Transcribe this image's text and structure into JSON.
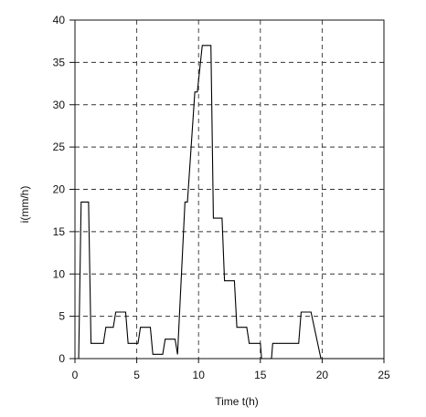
{
  "chart_data": {
    "type": "line",
    "title": "",
    "xlabel": "Time t(h)",
    "ylabel": "i(mm/h)",
    "xlim": [
      0,
      25
    ],
    "ylim": [
      0,
      40
    ],
    "xticks": [
      "0",
      "5",
      "10",
      "15",
      "20",
      "25"
    ],
    "yticks": [
      "0",
      "5",
      "10",
      "15",
      "20",
      "25",
      "30",
      "35",
      "40"
    ],
    "grid": true,
    "grid_style": "dashed",
    "step": true,
    "series": [
      {
        "color": "#000000",
        "x": [
          0.3,
          0.5,
          1.1,
          1.3,
          2.3,
          2.5,
          3.1,
          3.3,
          4.1,
          4.3,
          5.1,
          5.3,
          6.1,
          6.3,
          7.1,
          7.3,
          8.1,
          8.3,
          8.9,
          9.0,
          9.1,
          9.7,
          9.9,
          10.3,
          10.5,
          11.0,
          11.2,
          11.9,
          12.1,
          12.9,
          13.1,
          13.9,
          14.1,
          14.9,
          15.0,
          15.1,
          15.9,
          16.0,
          16.1,
          18.1,
          18.3,
          19.0,
          19.1,
          19.9,
          20.0,
          25.0
        ],
        "y": [
          0,
          18.5,
          18.5,
          1.8,
          1.8,
          3.7,
          3.7,
          5.5,
          5.5,
          1.8,
          1.8,
          3.7,
          3.7,
          0.5,
          0.5,
          2.3,
          2.3,
          0.5,
          18.5,
          18.5,
          18.5,
          31.5,
          31.5,
          37,
          37,
          37,
          16.6,
          16.6,
          9.2,
          9.2,
          3.7,
          3.7,
          1.8,
          1.8,
          1.8,
          0,
          0,
          1.8,
          1.8,
          1.8,
          5.5,
          5.5,
          5.5,
          0,
          0,
          0
        ]
      }
    ]
  }
}
